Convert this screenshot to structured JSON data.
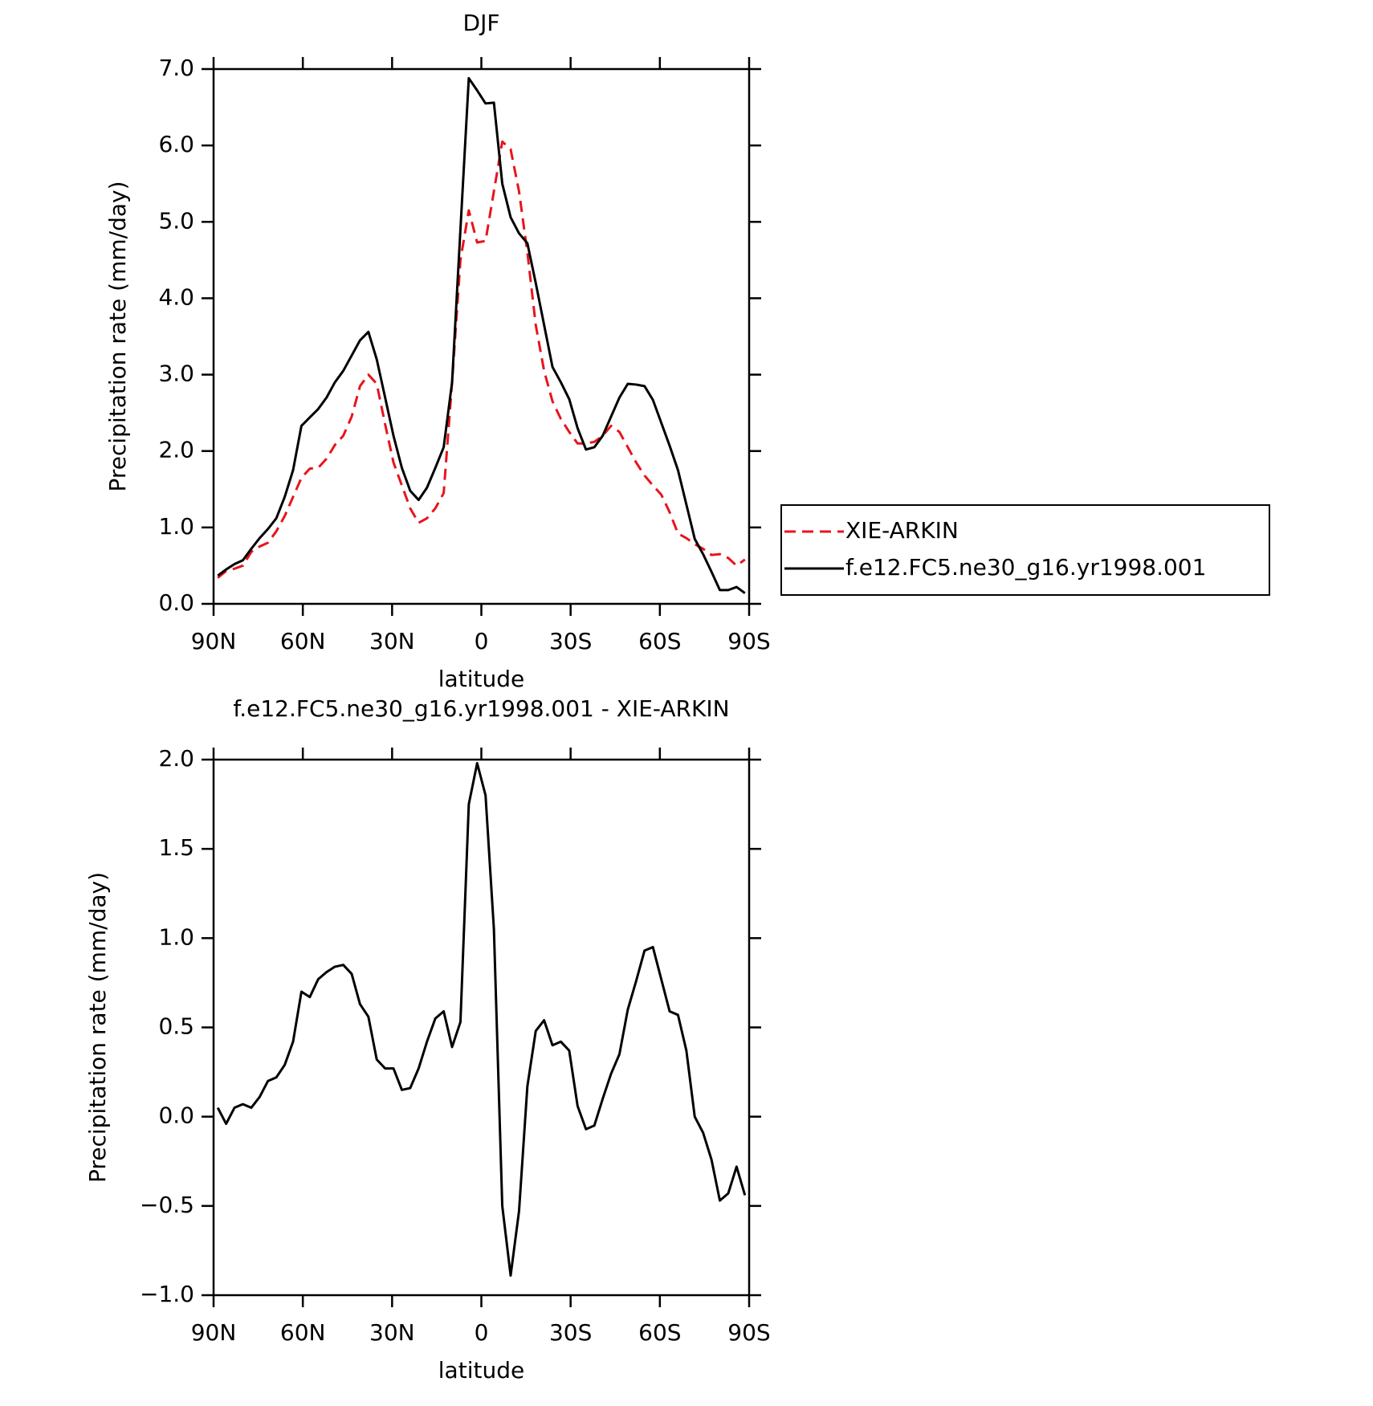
{
  "chart_data": [
    {
      "type": "line",
      "title": "DJF",
      "xlabel": "latitude",
      "ylabel": "Precipitation rate (mm/day)",
      "x": [
        88.59,
        85.78,
        82.97,
        80.16,
        77.34,
        74.53,
        71.72,
        68.91,
        66.09,
        63.28,
        60.47,
        57.66,
        54.84,
        52.03,
        49.22,
        46.41,
        43.59,
        40.78,
        37.97,
        35.16,
        32.34,
        29.53,
        26.72,
        23.91,
        21.09,
        18.28,
        15.47,
        12.66,
        9.84,
        7.03,
        4.22,
        1.41,
        -1.41,
        -4.22,
        -7.03,
        -9.84,
        -12.66,
        -15.47,
        -18.28,
        -21.09,
        -23.91,
        -26.72,
        -29.53,
        -32.34,
        -35.16,
        -37.97,
        -40.78,
        -43.59,
        -46.41,
        -49.22,
        -52.03,
        -54.84,
        -57.66,
        -60.47,
        -63.28,
        -66.09,
        -68.91,
        -71.72,
        -74.53,
        -77.34,
        -80.16,
        -82.97,
        -85.78,
        -88.59
      ],
      "xlim": [
        90,
        -90
      ],
      "xticks": [
        {
          "value": 90,
          "label": "90N"
        },
        {
          "value": 60,
          "label": "60N"
        },
        {
          "value": 30,
          "label": "30N"
        },
        0,
        {
          "value": -30,
          "label": "30S"
        },
        {
          "value": -60,
          "label": "60S"
        },
        {
          "value": -90,
          "label": "90S"
        }
      ],
      "ylim": [
        0,
        7
      ],
      "yticks": [
        {
          "value": 0,
          "label": "0.0"
        },
        {
          "value": 1,
          "label": "1.0"
        },
        {
          "value": 2,
          "label": "2.0"
        },
        {
          "value": 3,
          "label": "3.0"
        },
        {
          "value": 4,
          "label": "4.0"
        },
        {
          "value": 5,
          "label": "5.0"
        },
        {
          "value": 6,
          "label": "6.0"
        },
        {
          "value": 7,
          "label": "7.0"
        }
      ],
      "legend": "right",
      "series": [
        {
          "name": "XIE-ARKIN",
          "color": "#e8141c",
          "dash": true,
          "values": [
            0.34,
            0.43,
            0.46,
            0.5,
            0.68,
            0.75,
            0.8,
            0.95,
            1.15,
            1.4,
            1.65,
            1.77,
            1.78,
            1.9,
            2.08,
            2.2,
            2.45,
            2.85,
            3.0,
            2.88,
            2.35,
            1.85,
            1.55,
            1.25,
            1.06,
            1.12,
            1.25,
            1.45,
            2.9,
            4.5,
            5.15,
            4.73,
            4.75,
            5.4,
            6.05,
            5.95,
            5.4,
            4.6,
            3.65,
            3.05,
            2.65,
            2.42,
            2.25,
            2.1,
            2.1,
            2.12,
            2.2,
            2.33,
            2.25,
            2.05,
            1.85,
            1.68,
            1.55,
            1.43,
            1.2,
            0.92,
            0.86,
            0.78,
            0.72,
            0.64,
            0.65,
            0.6,
            0.5,
            0.58
          ]
        },
        {
          "name": "f.e12.FC5.ne30_g16.yr1998.001",
          "color": "#000000",
          "dash": false,
          "values": [
            0.37,
            0.45,
            0.52,
            0.57,
            0.72,
            0.86,
            0.98,
            1.12,
            1.4,
            1.75,
            2.33,
            2.44,
            2.55,
            2.7,
            2.9,
            3.05,
            3.25,
            3.45,
            3.56,
            3.2,
            2.7,
            2.2,
            1.78,
            1.48,
            1.36,
            1.52,
            1.78,
            2.05,
            2.9,
            4.9,
            6.88,
            6.72,
            6.55,
            6.56,
            5.5,
            5.06,
            4.85,
            4.72,
            4.2,
            3.65,
            3.1,
            2.9,
            2.68,
            2.3,
            2.02,
            2.05,
            2.2,
            2.45,
            2.7,
            2.88,
            2.87,
            2.85,
            2.67,
            2.37,
            2.07,
            1.75,
            1.3,
            0.85,
            0.65,
            0.42,
            0.18,
            0.18,
            0.22,
            0.14
          ]
        }
      ]
    },
    {
      "type": "line",
      "title": "f.e12.FC5.ne30_g16.yr1998.001 - XIE-ARKIN",
      "xlabel": "latitude",
      "ylabel": "Precipitation rate (mm/day)",
      "x": [
        88.59,
        85.78,
        82.97,
        80.16,
        77.34,
        74.53,
        71.72,
        68.91,
        66.09,
        63.28,
        60.47,
        57.66,
        54.84,
        52.03,
        49.22,
        46.41,
        43.59,
        40.78,
        37.97,
        35.16,
        32.34,
        29.53,
        26.72,
        23.91,
        21.09,
        18.28,
        15.47,
        12.66,
        9.84,
        7.03,
        4.22,
        1.41,
        -1.41,
        -4.22,
        -7.03,
        -9.84,
        -12.66,
        -15.47,
        -18.28,
        -21.09,
        -23.91,
        -26.72,
        -29.53,
        -32.34,
        -35.16,
        -37.97,
        -40.78,
        -43.59,
        -46.41,
        -49.22,
        -52.03,
        -54.84,
        -57.66,
        -60.47,
        -63.28,
        -66.09,
        -68.91,
        -71.72,
        -74.53,
        -77.34,
        -80.16,
        -82.97,
        -85.78,
        -88.59
      ],
      "xlim": [
        90,
        -90
      ],
      "xticks": [
        {
          "value": 90,
          "label": "90N"
        },
        {
          "value": 60,
          "label": "60N"
        },
        {
          "value": 30,
          "label": "30N"
        },
        0,
        {
          "value": -30,
          "label": "30S"
        },
        {
          "value": -60,
          "label": "60S"
        },
        {
          "value": -90,
          "label": "90S"
        }
      ],
      "ylim": [
        -1,
        2
      ],
      "yticks": [
        {
          "value": -1,
          "label": "−1.0"
        },
        {
          "value": -0.5,
          "label": "−0.5"
        },
        {
          "value": 0,
          "label": "0.0"
        },
        {
          "value": 0.5,
          "label": "0.5"
        },
        {
          "value": 1,
          "label": "1.0"
        },
        {
          "value": 1.5,
          "label": "1.5"
        },
        {
          "value": 2,
          "label": "2.0"
        }
      ],
      "series": [
        {
          "color": "#000000",
          "dash": false,
          "values": [
            0.05,
            -0.04,
            0.05,
            0.07,
            0.05,
            0.11,
            0.2,
            0.22,
            0.29,
            0.42,
            0.7,
            0.67,
            0.77,
            0.81,
            0.84,
            0.85,
            0.8,
            0.63,
            0.56,
            0.32,
            0.27,
            0.27,
            0.15,
            0.16,
            0.27,
            0.42,
            0.55,
            0.59,
            0.39,
            0.53,
            1.75,
            1.98,
            1.8,
            1.05,
            -0.5,
            -0.89,
            -0.53,
            0.17,
            0.48,
            0.54,
            0.4,
            0.42,
            0.37,
            0.06,
            -0.07,
            -0.05,
            0.1,
            0.24,
            0.35,
            0.6,
            0.76,
            0.93,
            0.95,
            0.77,
            0.59,
            0.57,
            0.37,
            0.0,
            -0.09,
            -0.24,
            -0.47,
            -0.43,
            -0.28,
            -0.44
          ]
        }
      ]
    }
  ]
}
